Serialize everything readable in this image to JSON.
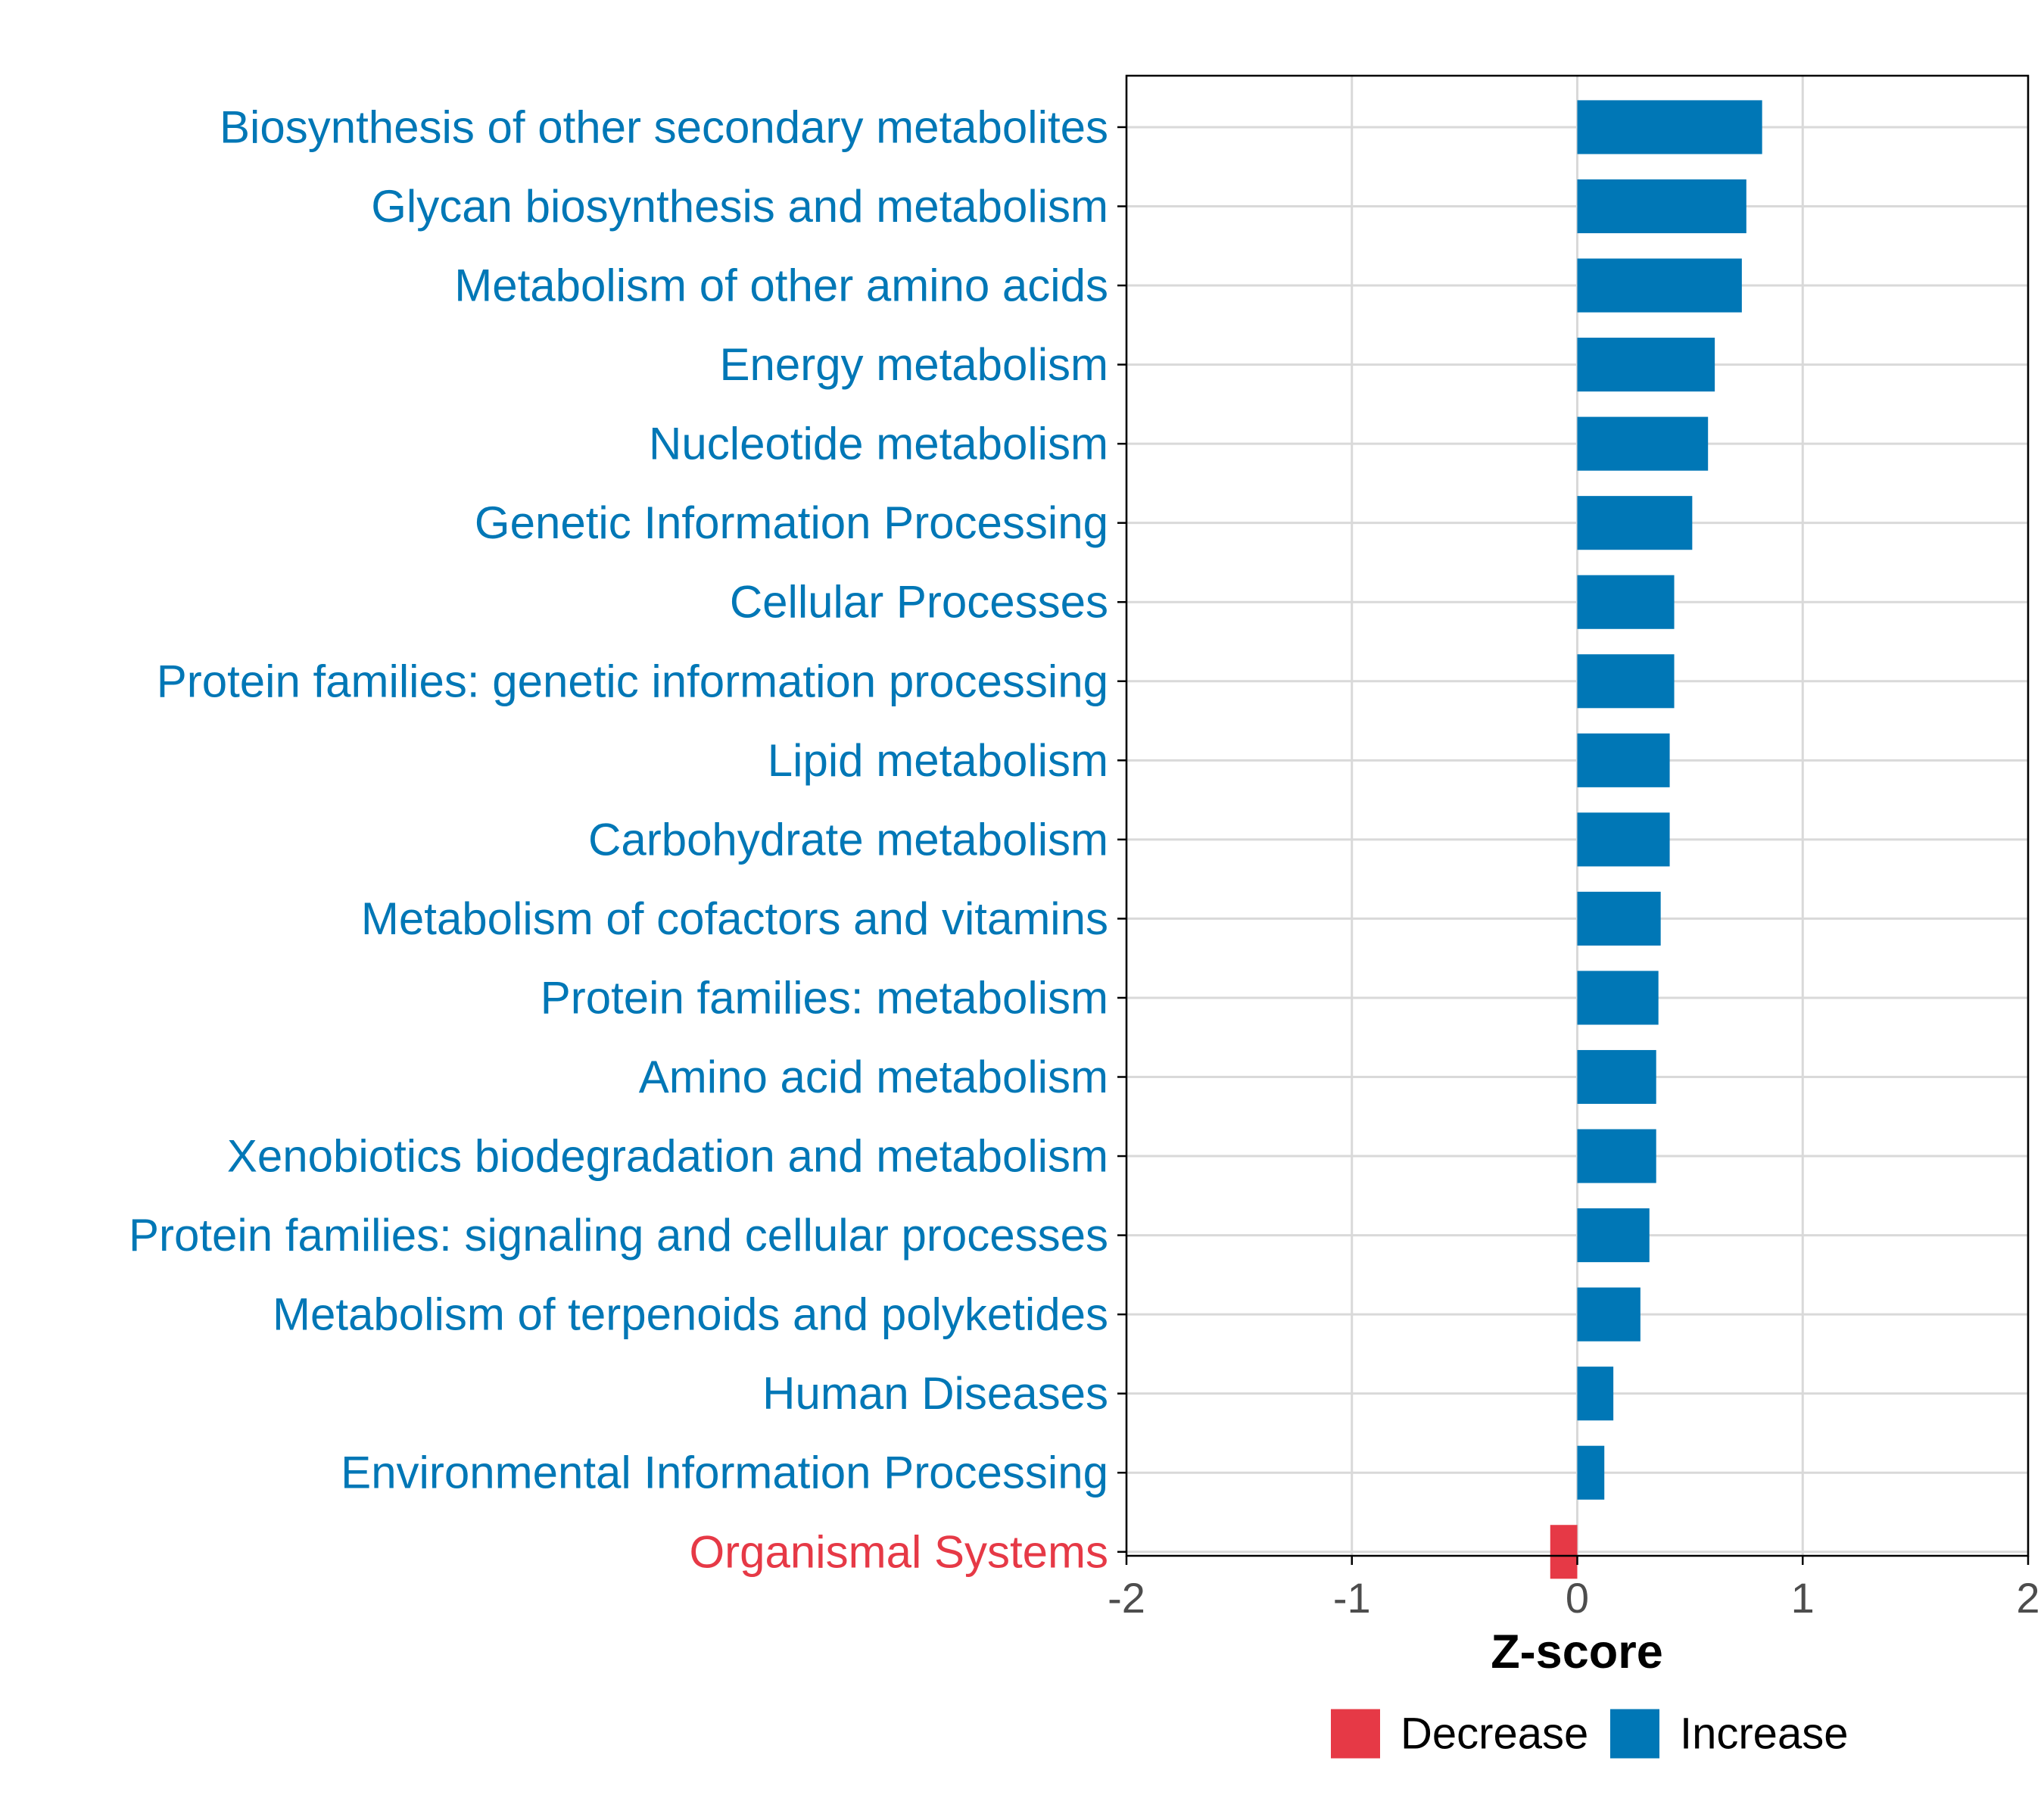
{
  "chart_data": {
    "type": "bar",
    "orientation": "horizontal",
    "xlabel": "Z-score",
    "xlim": [
      -2,
      2
    ],
    "xticks": [
      -2,
      -1,
      0,
      1,
      2
    ],
    "grid": true,
    "categories": [
      "Biosynthesis of other secondary metabolites",
      "Glycan biosynthesis and metabolism",
      "Metabolism of other amino acids",
      "Energy metabolism",
      "Nucleotide metabolism",
      "Genetic Information Processing",
      "Cellular Processes",
      "Protein families: genetic information processing",
      "Lipid metabolism",
      "Carbohydrate metabolism",
      "Metabolism of cofactors and vitamins",
      "Protein families: metabolism",
      "Amino acid metabolism",
      "Xenobiotics biodegradation and metabolism",
      "Protein families: signaling and cellular processes",
      "Metabolism of terpenoids and polyketides",
      "Human Diseases",
      "Environmental Information Processing",
      "Organismal Systems"
    ],
    "values": [
      0.82,
      0.75,
      0.73,
      0.61,
      0.58,
      0.51,
      0.43,
      0.43,
      0.41,
      0.41,
      0.37,
      0.36,
      0.35,
      0.35,
      0.32,
      0.28,
      0.16,
      0.12,
      -0.12
    ],
    "legend": {
      "position": "bottom",
      "items": [
        {
          "label": "Decrease",
          "color": "#E63946"
        },
        {
          "label": "Increase",
          "color": "#0077B6"
        }
      ]
    },
    "colors": {
      "increase": "#0077B6",
      "decrease": "#E63946",
      "grid": "#D9D9D9",
      "axis": "#000000",
      "tick_text": "#4D4D4D"
    }
  }
}
